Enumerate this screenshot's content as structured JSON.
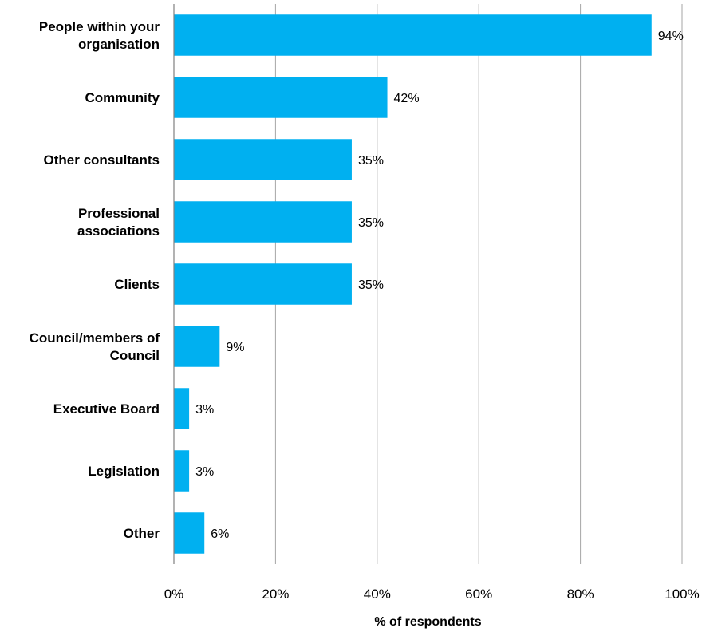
{
  "chart_data": {
    "type": "bar",
    "orientation": "horizontal",
    "categories": [
      [
        "People within your",
        "organisation"
      ],
      [
        "Community"
      ],
      [
        "Other consultants"
      ],
      [
        "Professional",
        "associations"
      ],
      [
        "Clients"
      ],
      [
        "Council/members of",
        "Council"
      ],
      [
        "Executive Board"
      ],
      [
        "Legislation"
      ],
      [
        "Other"
      ]
    ],
    "values": [
      94,
      42,
      35,
      35,
      35,
      9,
      3,
      3,
      6
    ],
    "data_labels": [
      "94%",
      "42%",
      "35%",
      "35%",
      "35%",
      "9%",
      "3%",
      "3%",
      "6%"
    ],
    "xlabel": "% of respondents",
    "ylabel": "",
    "xlim": [
      0,
      100
    ],
    "x_ticks": [
      "0%",
      "20%",
      "40%",
      "60%",
      "80%",
      "100%"
    ],
    "grid": "vertical",
    "legend": "none",
    "bar_color": "#00B0F0",
    "grid_color": "#A6A6A6"
  }
}
